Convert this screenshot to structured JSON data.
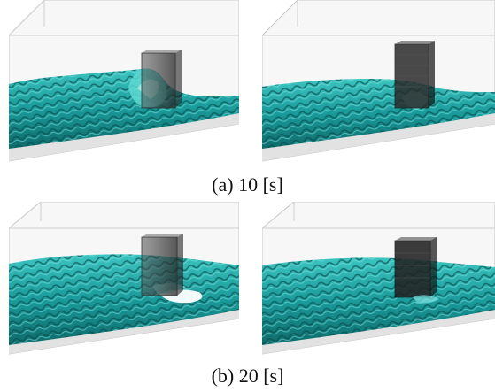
{
  "figure": {
    "captions": {
      "a": "(a) 10 [s]",
      "b": "(b) 20 [s]"
    },
    "panels": [
      {
        "id": "a-left",
        "row": "a",
        "side": "left"
      },
      {
        "id": "a-right",
        "row": "a",
        "side": "right"
      },
      {
        "id": "b-left",
        "row": "b",
        "side": "left"
      },
      {
        "id": "b-right",
        "row": "b",
        "side": "right"
      }
    ],
    "colors": {
      "water": "#1fa3a3",
      "water_light": "#6fe0dc",
      "water_dark": "#0d5a5a",
      "tank_edge": "#c8c8c8",
      "floor": "#e6e6e6",
      "pillar": "#3c3c3c"
    }
  }
}
